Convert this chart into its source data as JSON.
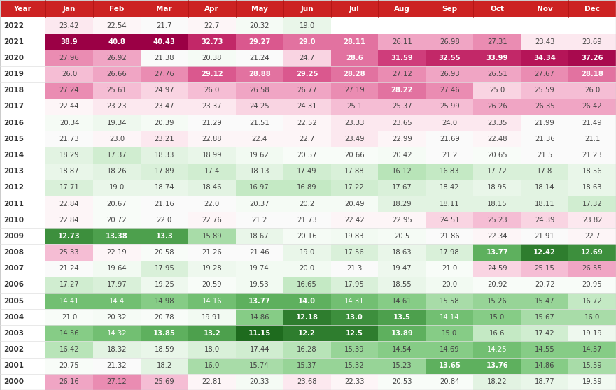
{
  "header_bg": "#CC2222",
  "header_labels": [
    "Year",
    "Jan",
    "Feb",
    "Mar",
    "Apr",
    "May",
    "Jun",
    "Jul",
    "Aug",
    "Sep",
    "Oct",
    "Nov",
    "Dec"
  ],
  "years": [
    2022,
    2021,
    2020,
    2019,
    2018,
    2017,
    2016,
    2015,
    2014,
    2013,
    2012,
    2011,
    2010,
    2009,
    2008,
    2007,
    2006,
    2005,
    2004,
    2003,
    2002,
    2001,
    2000
  ],
  "table_data": [
    [
      23.42,
      22.54,
      21.7,
      22.7,
      20.32,
      19.0,
      null,
      null,
      null,
      null,
      null,
      null
    ],
    [
      38.9,
      40.8,
      40.43,
      32.73,
      29.27,
      29.0,
      28.11,
      26.11,
      26.98,
      27.31,
      23.43,
      23.69
    ],
    [
      27.96,
      26.92,
      21.38,
      20.38,
      21.24,
      24.7,
      28.6,
      31.59,
      32.55,
      33.99,
      34.34,
      37.26
    ],
    [
      26.0,
      26.66,
      27.76,
      29.12,
      28.88,
      29.25,
      28.28,
      27.12,
      26.93,
      26.51,
      27.67,
      28.18
    ],
    [
      27.24,
      25.61,
      24.97,
      26.0,
      26.58,
      26.77,
      27.19,
      28.22,
      27.46,
      25.0,
      25.59,
      26.0
    ],
    [
      22.44,
      23.23,
      23.47,
      23.37,
      24.25,
      24.31,
      25.1,
      25.37,
      25.99,
      26.26,
      26.35,
      26.42
    ],
    [
      20.34,
      19.34,
      20.39,
      21.29,
      21.51,
      22.52,
      23.33,
      23.65,
      24.0,
      23.35,
      21.99,
      21.49
    ],
    [
      21.73,
      23.0,
      23.21,
      22.88,
      22.4,
      22.7,
      23.49,
      22.99,
      21.69,
      22.48,
      21.36,
      21.1
    ],
    [
      18.29,
      17.37,
      18.33,
      18.99,
      19.62,
      20.57,
      20.66,
      20.42,
      21.2,
      20.65,
      21.5,
      21.23
    ],
    [
      18.87,
      18.26,
      17.89,
      17.4,
      18.13,
      17.49,
      17.88,
      16.12,
      16.83,
      17.72,
      17.8,
      18.56
    ],
    [
      17.71,
      19.0,
      18.74,
      18.46,
      16.97,
      16.89,
      17.22,
      17.67,
      18.42,
      18.95,
      18.14,
      18.63
    ],
    [
      22.84,
      20.67,
      21.16,
      22.0,
      20.37,
      20.2,
      20.49,
      18.29,
      18.11,
      18.15,
      18.11,
      17.32
    ],
    [
      22.84,
      20.72,
      22.0,
      22.76,
      21.2,
      21.73,
      22.42,
      22.95,
      24.51,
      25.23,
      24.39,
      23.82
    ],
    [
      12.73,
      13.38,
      13.3,
      15.89,
      18.67,
      20.16,
      19.83,
      20.5,
      21.86,
      22.34,
      21.91,
      22.7
    ],
    [
      25.33,
      22.19,
      20.58,
      21.26,
      21.46,
      19.0,
      17.56,
      18.63,
      17.98,
      13.77,
      12.42,
      12.69
    ],
    [
      21.24,
      19.64,
      17.95,
      19.28,
      19.74,
      20.0,
      21.3,
      19.47,
      21.0,
      24.59,
      25.15,
      26.55
    ],
    [
      17.27,
      17.97,
      19.25,
      20.59,
      19.53,
      16.65,
      17.95,
      18.55,
      20.0,
      20.92,
      20.72,
      20.95
    ],
    [
      14.41,
      14.4,
      14.98,
      14.16,
      13.77,
      14.0,
      14.31,
      14.61,
      15.58,
      15.26,
      15.47,
      16.72
    ],
    [
      21.0,
      20.32,
      20.78,
      19.91,
      14.86,
      12.18,
      13.0,
      13.5,
      14.14,
      15.0,
      15.67,
      16.0
    ],
    [
      14.56,
      14.32,
      13.85,
      13.2,
      11.15,
      12.2,
      12.5,
      13.89,
      15.0,
      16.6,
      17.42,
      19.19
    ],
    [
      16.42,
      18.32,
      18.59,
      18.0,
      17.44,
      16.28,
      15.39,
      14.54,
      14.69,
      14.25,
      14.55,
      14.57
    ],
    [
      20.75,
      21.32,
      18.2,
      16.0,
      15.74,
      15.37,
      15.32,
      15.23,
      13.65,
      13.76,
      14.86,
      15.59
    ],
    [
      26.16,
      27.12,
      25.69,
      22.81,
      20.33,
      23.68,
      22.33,
      20.53,
      20.84,
      18.22,
      18.77,
      19.59
    ]
  ]
}
